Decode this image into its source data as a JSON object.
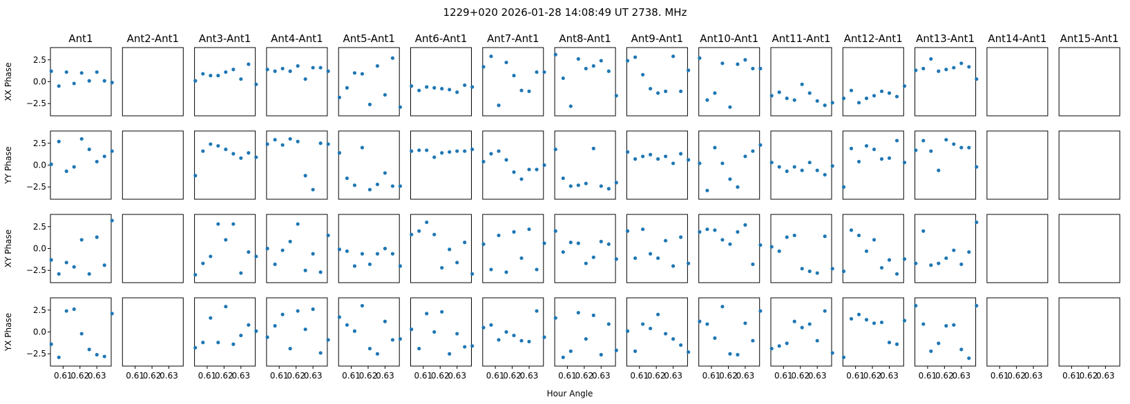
{
  "title": "1229+020  2026-01-28 14:08:49 UT  2738. MHz",
  "chart_data": {
    "type": "scatter",
    "title": "1229+020  2026-01-28 14:08:49 UT  2738. MHz",
    "xlabel": "Hour Angle",
    "columns": [
      "Ant1",
      "Ant2-Ant1",
      "Ant3-Ant1",
      "Ant4-Ant1",
      "Ant5-Ant1",
      "Ant6-Ant1",
      "Ant7-Ant1",
      "Ant8-Ant1",
      "Ant9-Ant1",
      "Ant10-Ant1",
      "Ant11-Ant1",
      "Ant12-Ant1",
      "Ant13-Ant1",
      "Ant14-Ant1",
      "Ant15-Ant1"
    ],
    "rows": [
      "XX Phase",
      "YY Phase",
      "XY Phase",
      "YX Phase"
    ],
    "xlim": [
      0.6025,
      0.6385
    ],
    "ylim": [
      -3.9,
      3.9
    ],
    "xticks": [
      0.61,
      0.62,
      0.63
    ],
    "xtick_labels": [
      "0.61",
      "0.62",
      "0.63"
    ],
    "yticks": [
      2.5,
      0.0,
      -2.5
    ],
    "ytick_labels": [
      "2.5",
      "0.0",
      "−2.5"
    ],
    "x": [
      0.603,
      0.6075,
      0.612,
      0.6165,
      0.621,
      0.6255,
      0.63,
      0.6345,
      0.639
    ],
    "marker_color": "#1f77b4",
    "series": [
      {
        "name": "XX Phase",
        "values": [
          [
            1.2,
            -0.5,
            1.1,
            -0.2,
            1.0,
            0.1,
            1.1,
            0.1,
            -0.1
          ],
          [],
          [
            0.1,
            0.9,
            0.7,
            0.7,
            1.1,
            1.4,
            0.3,
            2.0,
            -0.3
          ],
          [
            1.4,
            1.2,
            1.5,
            1.2,
            1.8,
            0.3,
            1.6,
            1.6,
            1.2
          ],
          [
            -1.8,
            -0.7,
            1.0,
            0.9,
            -2.6,
            1.8,
            -1.5,
            2.7,
            -2.9
          ],
          [
            -0.5,
            -1.0,
            -0.6,
            -0.7,
            -0.8,
            -0.9,
            -1.2,
            -0.4,
            -0.6
          ],
          [
            1.7,
            2.9,
            -2.7,
            2.2,
            0.7,
            -1.0,
            -1.1,
            1.1,
            1.1
          ],
          [
            3.1,
            0.4,
            -2.8,
            2.6,
            1.5,
            1.8,
            2.4,
            1.2,
            -1.6
          ],
          [
            2.4,
            2.8,
            0.8,
            -0.8,
            -1.3,
            -1.1,
            2.9,
            -1.1,
            1.3
          ],
          [
            2.7,
            -2.1,
            -1.3,
            2.1,
            -2.9,
            2.0,
            2.5,
            1.5,
            1.5
          ],
          [
            -1.6,
            -1.2,
            -1.9,
            -2.1,
            -0.3,
            -1.3,
            -2.2,
            -2.7,
            -2.4
          ],
          [
            -1.9,
            -1.0,
            -2.4,
            -1.9,
            -1.6,
            -1.1,
            -1.3,
            -1.7,
            -0.5
          ],
          [
            1.3,
            1.5,
            2.6,
            1.2,
            1.4,
            1.6,
            2.1,
            1.7,
            0.3
          ],
          [],
          []
        ]
      },
      {
        "name": "YY Phase",
        "values": [
          [
            0.1,
            2.7,
            -0.7,
            -0.2,
            3.0,
            1.8,
            0.4,
            1.0,
            1.6
          ],
          [],
          [
            -1.2,
            1.6,
            2.4,
            2.2,
            1.8,
            1.3,
            0.8,
            1.4,
            0.9
          ],
          [
            2.4,
            2.9,
            2.3,
            3.0,
            2.7,
            -1.2,
            -2.8,
            2.5,
            2.4
          ],
          [
            1.4,
            -1.5,
            -2.3,
            2.0,
            -2.8,
            -2.2,
            -0.9,
            -2.4,
            -2.4
          ],
          [
            1.6,
            1.7,
            1.7,
            0.9,
            1.4,
            1.5,
            1.6,
            1.6,
            1.8
          ],
          [
            0.4,
            1.3,
            1.6,
            0.6,
            -0.8,
            -1.6,
            -0.5,
            -0.5,
            0.0
          ],
          [
            1.8,
            -1.5,
            -2.4,
            -2.3,
            -2.1,
            1.9,
            -2.4,
            -2.7,
            -2.0
          ],
          [
            1.5,
            0.7,
            1.0,
            1.2,
            0.7,
            1.0,
            0.2,
            1.3,
            0.6
          ],
          [
            0.2,
            -2.9,
            2.0,
            0.2,
            -1.6,
            -2.5,
            1.0,
            1.6,
            2.3
          ],
          [
            0.3,
            -0.2,
            -0.7,
            -0.2,
            -0.6,
            0.3,
            -0.6,
            -1.1,
            -0.1
          ],
          [
            -2.5,
            1.9,
            0.4,
            2.2,
            1.8,
            0.7,
            0.8,
            2.8,
            0.3
          ],
          [
            1.7,
            2.8,
            1.6,
            -0.6,
            2.9,
            2.4,
            2.0,
            2.0,
            -0.2
          ],
          [],
          []
        ]
      },
      {
        "name": "XY Phase",
        "values": [
          [
            -1.3,
            -2.9,
            -1.6,
            -2.1,
            1.0,
            -2.9,
            1.3,
            -1.9,
            3.2
          ],
          [],
          [
            -3.0,
            -1.7,
            -0.9,
            2.8,
            1.0,
            2.8,
            -2.8,
            -0.4,
            -0.9
          ],
          [
            0.0,
            -1.8,
            -0.2,
            0.8,
            2.8,
            -2.5,
            -0.6,
            -2.7,
            1.5
          ],
          [
            -0.1,
            -0.3,
            -2.0,
            -0.6,
            -1.8,
            -0.6,
            0.0,
            -0.6,
            -2.0
          ],
          [
            1.6,
            2.0,
            3.0,
            1.6,
            -2.2,
            -0.1,
            -1.6,
            0.7,
            -2.9
          ],
          [
            0.5,
            -2.4,
            1.5,
            -2.7,
            1.9,
            -1.1,
            2.2,
            -2.4,
            0.6
          ],
          [
            2.0,
            -0.4,
            0.7,
            0.6,
            -1.7,
            -1.0,
            0.8,
            0.5,
            -1.2
          ],
          [
            2.0,
            -1.1,
            2.2,
            -0.6,
            -1.1,
            0.9,
            -2.0,
            1.3,
            -1.7
          ],
          [
            1.9,
            2.2,
            2.1,
            1.0,
            0.5,
            1.9,
            2.7,
            -1.8,
            0.4
          ],
          [
            0.2,
            -0.3,
            1.3,
            1.5,
            -2.3,
            -2.6,
            -2.8,
            1.4,
            -2.3
          ],
          [
            -2.6,
            2.1,
            1.5,
            -0.3,
            1.0,
            -2.2,
            -1.3,
            -2.9,
            -1.2
          ],
          [
            -1.7,
            2.0,
            -1.9,
            -1.7,
            -1.1,
            -0.2,
            -1.8,
            -0.4,
            3.0
          ],
          [],
          []
        ]
      },
      {
        "name": "YX Phase",
        "values": [
          [
            -1.4,
            -2.9,
            2.4,
            2.6,
            -0.2,
            -2.0,
            -2.6,
            -2.8,
            2.1
          ],
          [],
          [
            -1.8,
            -1.2,
            1.6,
            -1.2,
            2.9,
            -1.4,
            -0.4,
            0.8,
            0.1
          ],
          [
            -0.6,
            0.7,
            2.0,
            -1.9,
            2.4,
            0.3,
            2.6,
            -2.4,
            -0.9
          ],
          [
            1.7,
            0.8,
            0.1,
            3.0,
            -1.9,
            -2.5,
            1.2,
            -0.9,
            -0.8
          ],
          [
            0.3,
            -1.9,
            2.1,
            0.0,
            2.3,
            -2.5,
            -0.2,
            -1.7,
            -1.6
          ],
          [
            0.5,
            0.8,
            -0.9,
            0.0,
            -0.4,
            -1.0,
            -1.1,
            2.4,
            -0.6
          ],
          [
            1.6,
            -2.9,
            -2.2,
            2.2,
            -0.8,
            1.9,
            -2.6,
            0.9,
            -2.1
          ],
          [
            0.1,
            -2.2,
            0.9,
            0.4,
            2.0,
            -0.2,
            -0.8,
            -1.5,
            -2.3
          ],
          [
            1.2,
            0.9,
            -0.7,
            2.9,
            -2.5,
            -2.6,
            1.0,
            -1.0,
            2.4
          ],
          [
            -1.9,
            -1.6,
            -1.3,
            1.2,
            0.5,
            0.9,
            -1.0,
            2.4,
            -2.4
          ],
          [
            -2.9,
            1.5,
            2.0,
            1.4,
            1.0,
            1.1,
            -1.2,
            -1.4,
            1.3
          ],
          [
            3.0,
            0.9,
            -2.2,
            -1.3,
            0.7,
            0.8,
            -2.0,
            -3.0,
            3.0
          ],
          [],
          []
        ]
      }
    ]
  }
}
